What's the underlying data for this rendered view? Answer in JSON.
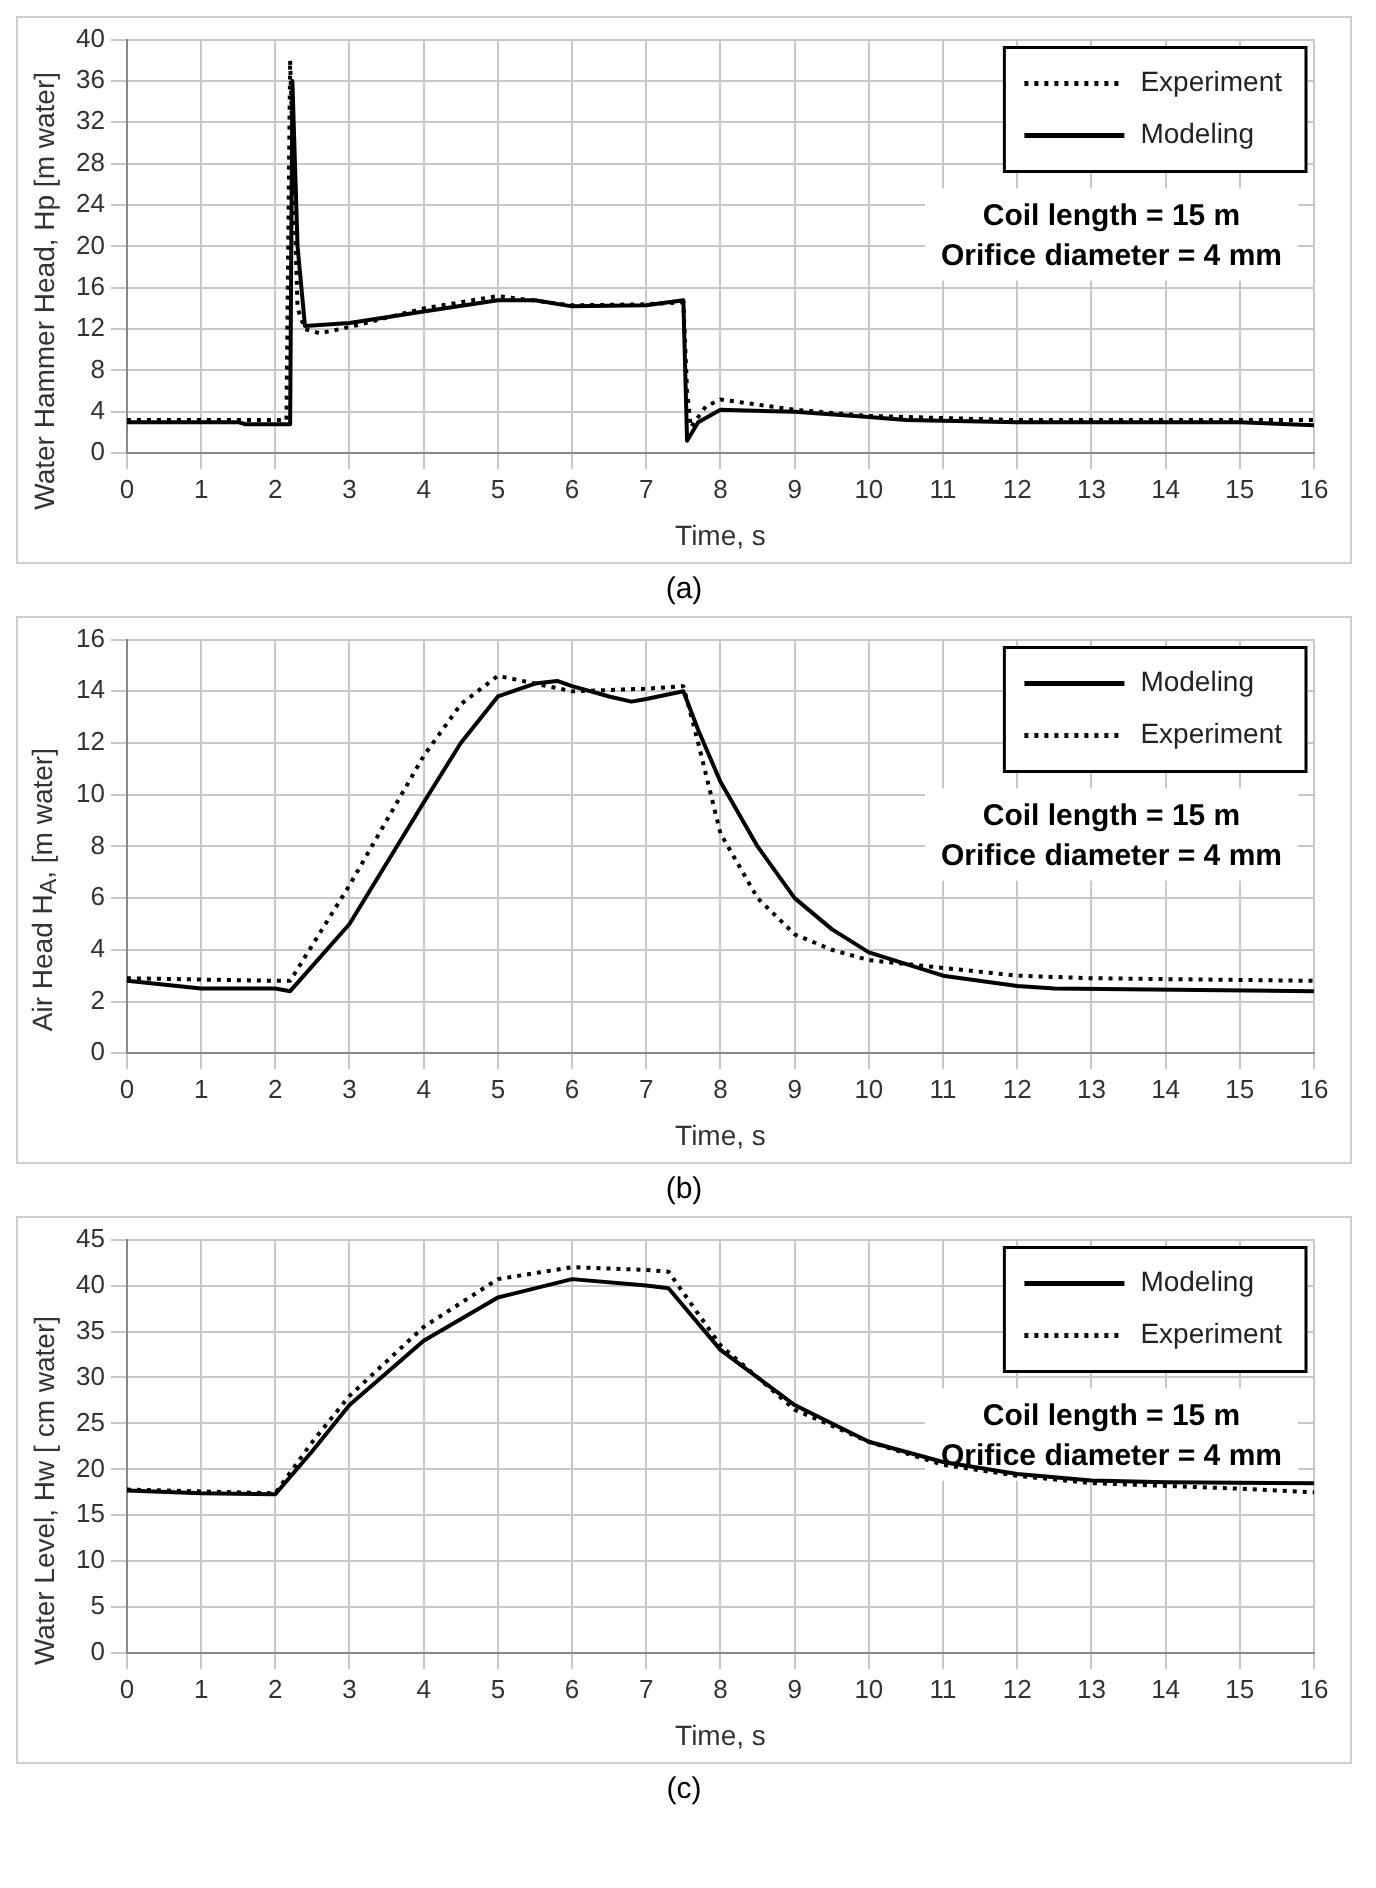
{
  "chart_data": [
    {
      "type": "line",
      "subtitle": "(a)",
      "xlabel": "Time, s",
      "ylabel": "Water Hammer Head, Hp [m water]",
      "xlim": [
        0,
        16
      ],
      "xticks": [
        0,
        1,
        2,
        3,
        4,
        5,
        6,
        7,
        8,
        9,
        10,
        11,
        12,
        13,
        14,
        15,
        16
      ],
      "ylim": [
        0,
        40
      ],
      "yticks": [
        0,
        4,
        8,
        12,
        16,
        20,
        24,
        28,
        32,
        36,
        40
      ],
      "grid": true,
      "legend": "top right",
      "marker": "none",
      "annotations": [
        "Coil length = 15 m",
        "Orifice diameter = 4 mm"
      ],
      "series": [
        {
          "name": "Experiment",
          "color": "#000000",
          "line_style": "dotted",
          "x": [
            0,
            1,
            2,
            2.15,
            2.2,
            2.3,
            2.4,
            2.6,
            3,
            4,
            5,
            6,
            7,
            7.5,
            7.55,
            7.6,
            7.8,
            8,
            9,
            10,
            11,
            12,
            14,
            16
          ],
          "values": [
            3.2,
            3.2,
            3.2,
            3.2,
            38,
            14,
            12,
            11.6,
            12.2,
            14,
            15.2,
            14.3,
            14.4,
            14.6,
            6,
            2.5,
            4.5,
            5.2,
            4.2,
            3.6,
            3.4,
            3.2,
            3.2,
            3.2
          ]
        },
        {
          "name": "Modeling",
          "color": "#000000",
          "line_style": "solid",
          "x": [
            0,
            1.5,
            1.6,
            2.2,
            2.23,
            2.3,
            2.4,
            3,
            4,
            5,
            5.5,
            6,
            7,
            7.5,
            7.55,
            7.7,
            8,
            9,
            10,
            10.5,
            12,
            15,
            16
          ],
          "values": [
            3,
            3,
            2.8,
            2.8,
            36,
            20,
            12.3,
            12.6,
            13.7,
            14.8,
            14.8,
            14.2,
            14.3,
            14.8,
            1.2,
            3,
            4.2,
            4,
            3.5,
            3.2,
            3,
            3,
            2.7
          ]
        }
      ]
    },
    {
      "type": "line",
      "subtitle": "(b)",
      "xlabel": "Time, s",
      "ylabel": "Air Head H$_{A}$, [m water]",
      "xlim": [
        0,
        16
      ],
      "xticks": [
        0,
        1,
        2,
        3,
        4,
        5,
        6,
        7,
        8,
        9,
        10,
        11,
        12,
        13,
        14,
        15,
        16
      ],
      "ylim": [
        0,
        16
      ],
      "yticks": [
        0,
        2,
        4,
        6,
        8,
        10,
        12,
        14,
        16
      ],
      "grid": true,
      "legend": "top right",
      "marker": "none",
      "annotations": [
        "Coil length = 15 m",
        "Orifice diameter = 4 mm"
      ],
      "series": [
        {
          "name": "Modeling",
          "color": "#000000",
          "line_style": "solid",
          "x": [
            0,
            1,
            2,
            2.2,
            3,
            4,
            4.5,
            5,
            5.5,
            5.8,
            6,
            6.5,
            6.8,
            7,
            7.5,
            7.7,
            8,
            8.5,
            9,
            9.5,
            10,
            11,
            12,
            12.5,
            16
          ],
          "values": [
            2.8,
            2.5,
            2.5,
            2.4,
            5,
            9.7,
            12,
            13.8,
            14.3,
            14.4,
            14.2,
            13.8,
            13.6,
            13.7,
            14,
            12.5,
            10.5,
            8,
            6,
            4.8,
            3.9,
            3,
            2.6,
            2.5,
            2.4
          ]
        },
        {
          "name": "Experiment",
          "color": "#000000",
          "line_style": "dotted",
          "x": [
            0,
            2,
            2.2,
            3,
            4,
            4.5,
            5,
            5.5,
            6,
            7,
            7.5,
            7.7,
            8,
            8.5,
            9,
            9.5,
            10,
            11,
            12,
            13,
            16
          ],
          "values": [
            2.9,
            2.8,
            2.8,
            6.5,
            11.5,
            13.5,
            14.6,
            14.3,
            14,
            14.1,
            14.2,
            12,
            8.5,
            6,
            4.6,
            4,
            3.6,
            3.3,
            3,
            2.9,
            2.8
          ]
        }
      ]
    },
    {
      "type": "line",
      "subtitle": "(c)",
      "xlabel": "Time, s",
      "ylabel": "Water Level, Hw [ cm water]",
      "xlim": [
        0,
        16
      ],
      "xticks": [
        0,
        1,
        2,
        3,
        4,
        5,
        6,
        7,
        8,
        9,
        10,
        11,
        12,
        13,
        14,
        15,
        16
      ],
      "ylim": [
        0,
        45
      ],
      "yticks": [
        0,
        5,
        10,
        15,
        20,
        25,
        30,
        35,
        40,
        45
      ],
      "grid": true,
      "legend": "top right",
      "marker": "none",
      "annotations": [
        "Coil length = 15 m",
        "Orifice diameter = 4 mm"
      ],
      "series": [
        {
          "name": "Modeling",
          "color": "#000000",
          "line_style": "solid",
          "x": [
            0,
            1,
            2,
            2.5,
            3,
            4,
            5,
            6,
            7,
            7.3,
            8,
            9,
            10,
            11,
            12,
            13,
            14,
            16
          ],
          "values": [
            17.7,
            17.4,
            17.3,
            22,
            27,
            34,
            38.7,
            40.7,
            40,
            39.7,
            33,
            27,
            23,
            20.8,
            19.5,
            18.8,
            18.6,
            18.5
          ]
        },
        {
          "name": "Experiment",
          "color": "#000000",
          "line_style": "dotted",
          "x": [
            0,
            2,
            2.5,
            3,
            4,
            5,
            6,
            7,
            7.3,
            8,
            9,
            10,
            11,
            12,
            13,
            14,
            15,
            16
          ],
          "values": [
            17.8,
            17.4,
            23,
            28,
            35.5,
            40.7,
            42,
            41.7,
            41.5,
            33.5,
            26.5,
            23,
            20.5,
            19.3,
            18.5,
            18.2,
            17.9,
            17.5
          ]
        }
      ]
    }
  ]
}
